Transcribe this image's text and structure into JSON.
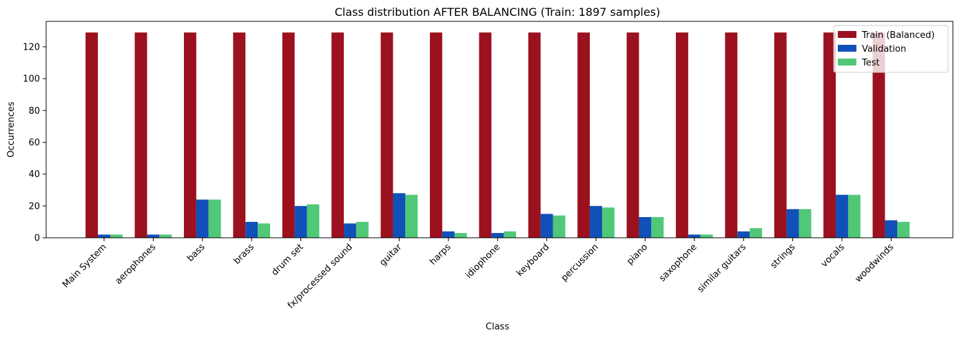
{
  "chart_data": {
    "type": "bar",
    "title": "Class distribution AFTER BALANCING (Train: 1897 samples)",
    "xlabel": "Class",
    "ylabel": "Occurrences",
    "ylim": [
      0,
      136
    ],
    "yticks": [
      0,
      20,
      40,
      60,
      80,
      100,
      120
    ],
    "grid": false,
    "legend_position": "top-right",
    "categories": [
      "Main System",
      "aerophones",
      "bass",
      "brass",
      "drum set",
      "fx/processed sound",
      "guitar",
      "harps",
      "idiophone",
      "keyboard",
      "percussion",
      "piano",
      "saxophone",
      "similar guitars",
      "strings",
      "vocals",
      "woodwinds"
    ],
    "series": [
      {
        "name": "Train (Balanced)",
        "color": "#9b111e",
        "values": [
          129,
          129,
          129,
          129,
          129,
          129,
          129,
          129,
          129,
          129,
          129,
          129,
          129,
          129,
          129,
          129,
          129
        ]
      },
      {
        "name": "Validation",
        "color": "#1150b8",
        "values": [
          2,
          2,
          24,
          10,
          20,
          9,
          28,
          4,
          3,
          15,
          20,
          13,
          2,
          4,
          18,
          27,
          11
        ]
      },
      {
        "name": "Test",
        "color": "#50c878",
        "values": [
          2,
          2,
          24,
          9,
          21,
          10,
          27,
          3,
          4,
          14,
          19,
          13,
          2,
          6,
          18,
          27,
          10
        ]
      }
    ]
  }
}
